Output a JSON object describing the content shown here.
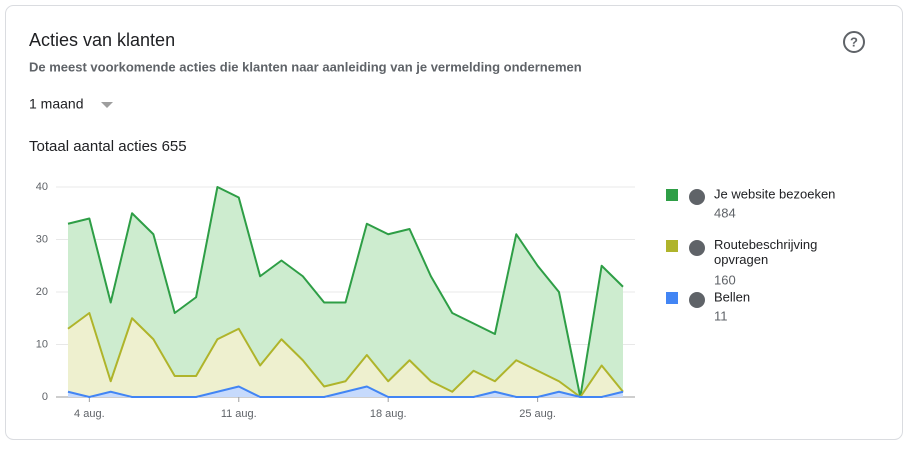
{
  "chart_data": {
    "type": "stacked-area",
    "title": "Acties van klanten",
    "subtitle": "De meest voorkomende acties die klanten naar aanleiding van je vermelding ondernemen",
    "period": "1 maand",
    "total_label": "Totaal aantal acties 655",
    "categories": [
      null,
      "4 aug.",
      null,
      null,
      null,
      null,
      null,
      null,
      "11 aug.",
      null,
      null,
      null,
      null,
      null,
      null,
      "18 aug.",
      null,
      null,
      null,
      null,
      null,
      null,
      "25 aug.",
      null,
      null,
      null,
      null
    ],
    "series": [
      {
        "name": "Je website bezoeken",
        "total": 484,
        "color": "#2e9e46",
        "fill": "#cdeccf",
        "values": [
          20,
          18,
          15,
          20,
          20,
          12,
          15,
          29,
          25,
          17,
          15,
          16,
          16,
          15,
          25,
          28,
          25,
          20,
          15,
          9,
          9,
          24,
          20,
          17,
          0,
          19,
          20
        ]
      },
      {
        "name": "Routebeschrijving opvragen",
        "total": 160,
        "color": "#afb42b",
        "fill": "#eef0cf",
        "values": [
          12,
          16,
          2,
          15,
          11,
          4,
          4,
          10,
          11,
          6,
          11,
          7,
          2,
          2,
          6,
          3,
          7,
          3,
          1,
          5,
          2,
          7,
          5,
          2,
          0,
          6,
          0
        ]
      },
      {
        "name": "Bellen",
        "total": 11,
        "color": "#4285f4",
        "fill": "#c6dafc",
        "values": [
          1,
          0,
          1,
          0,
          0,
          0,
          0,
          1,
          2,
          0,
          0,
          0,
          0,
          1,
          2,
          0,
          0,
          0,
          0,
          0,
          1,
          0,
          0,
          1,
          0,
          0,
          1
        ]
      }
    ],
    "ylim": [
      0,
      40
    ],
    "yticks": [
      0,
      10,
      20,
      30,
      40
    ],
    "grid": true,
    "legend": "right"
  }
}
